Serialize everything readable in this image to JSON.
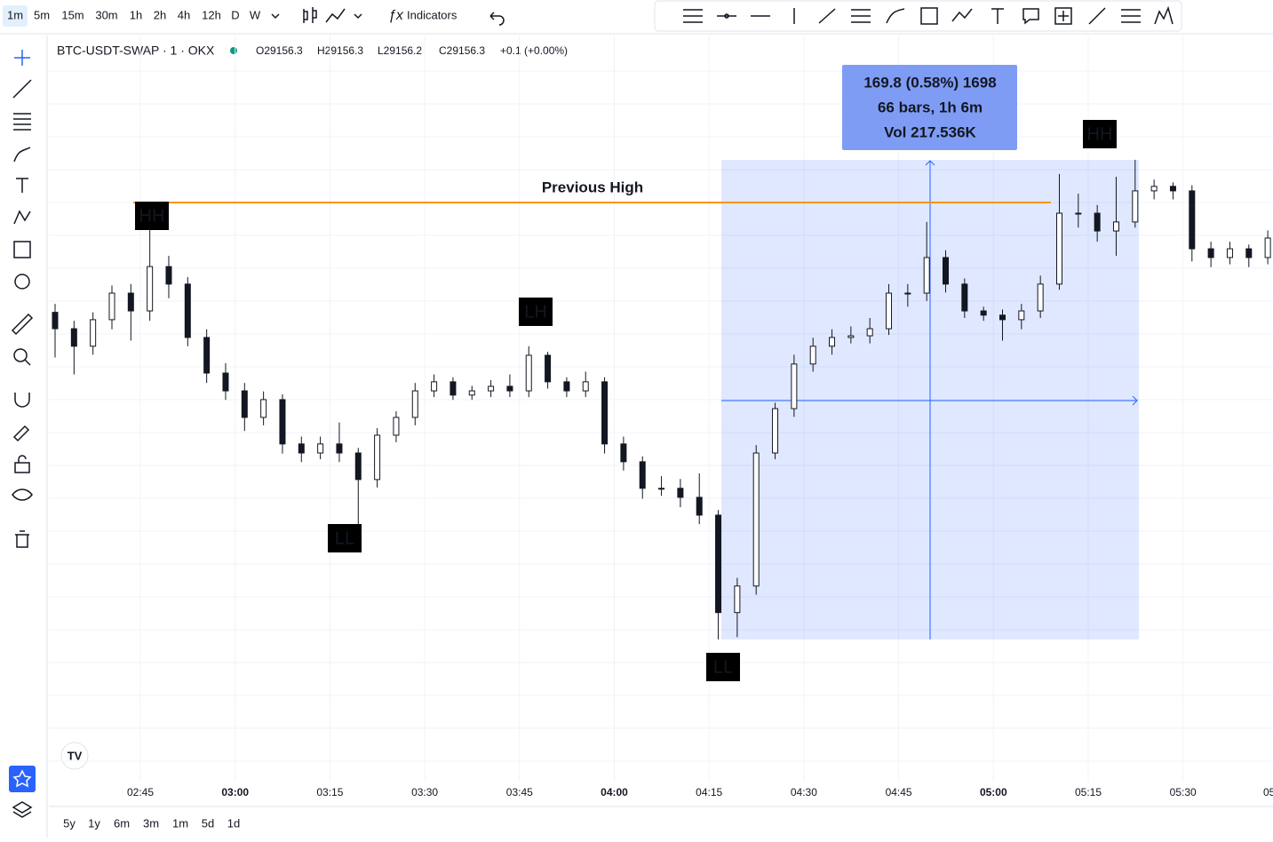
{
  "toolbar": {
    "intervals": [
      "1m",
      "5m",
      "15m",
      "30m",
      "1h",
      "2h",
      "4h",
      "12h",
      "D",
      "W"
    ],
    "indicators": "Indicators"
  },
  "legend": {
    "symbol": "BTC-USDT-SWAP · 1 · OKX",
    "open": "O29156.3",
    "high": "H29156.3",
    "low": "L29156.2",
    "close": "C29156.3",
    "change": "+0.1 (+0.00%)"
  },
  "chart": {
    "type": "candlestick",
    "ylim": [
      28967,
      29228
    ],
    "candles": [
      [
        29130.0,
        29133.0,
        29114.0,
        29124.2
      ],
      [
        29124.2,
        29127.0,
        29108.0,
        29118.0
      ],
      [
        29118.0,
        29130.0,
        29115.0,
        29127.4
      ],
      [
        29127.4,
        29139.5,
        29124.0,
        29136.8
      ],
      [
        29136.8,
        29140.0,
        29120.0,
        29130.5
      ],
      [
        29130.5,
        29159.4,
        29127.0,
        29146.2
      ],
      [
        29146.2,
        29150.0,
        29135.0,
        29140.0
      ],
      [
        29140.0,
        29142.5,
        29118.0,
        29121.1
      ],
      [
        29121.1,
        29124.0,
        29105.0,
        29108.5
      ],
      [
        29108.5,
        29112.0,
        29099.0,
        29102.2
      ],
      [
        29102.2,
        29105.0,
        29088.0,
        29092.8
      ],
      [
        29092.8,
        29102.0,
        29090.0,
        29099.1
      ],
      [
        29099.1,
        29101.0,
        29080.0,
        29083.4
      ],
      [
        29083.4,
        29086.0,
        29077.0,
        29080.2
      ],
      [
        29080.2,
        29086.0,
        29078.0,
        29083.4
      ],
      [
        29083.4,
        29091.0,
        29077.0,
        29080.2
      ],
      [
        29080.2,
        29082.0,
        29052.0,
        29070.8
      ],
      [
        29070.8,
        29089.0,
        29068.0,
        29086.5
      ],
      [
        29086.5,
        29095.0,
        29084.0,
        29092.8
      ],
      [
        29092.8,
        29105.0,
        29090.0,
        29102.2
      ],
      [
        29102.2,
        29108.0,
        29100.0,
        29105.4
      ],
      [
        29105.4,
        29107.0,
        29099.0,
        29100.7
      ],
      [
        29100.7,
        29104.0,
        29099.0,
        29102.2
      ],
      [
        29102.2,
        29106.0,
        29100.0,
        29103.8
      ],
      [
        29103.8,
        29108.0,
        29100.0,
        29102.2
      ],
      [
        29102.2,
        29118.0,
        29100.0,
        29114.8
      ],
      [
        29114.8,
        29116.0,
        29103.0,
        29105.4
      ],
      [
        29105.4,
        29107.0,
        29100.0,
        29102.2
      ],
      [
        29102.2,
        29109.0,
        29100.0,
        29105.4
      ],
      [
        29105.4,
        29107.0,
        29080.0,
        29083.4
      ],
      [
        29083.4,
        29086.0,
        29074.0,
        29077.1
      ],
      [
        29077.1,
        29079.0,
        29064.0,
        29067.7
      ],
      [
        29067.7,
        29072.0,
        29065.0,
        29067.7
      ],
      [
        29067.7,
        29071.0,
        29061.0,
        29064.5
      ],
      [
        29064.5,
        29073.0,
        29055.0,
        29058.2
      ],
      [
        29058.2,
        29060.0,
        29014.2,
        29023.7
      ],
      [
        29023.7,
        29036.0,
        29015.0,
        29033.1
      ],
      [
        29033.1,
        29083.0,
        29030.0,
        29080.2
      ],
      [
        29080.2,
        29098.0,
        29078.0,
        29095.9
      ],
      [
        29095.9,
        29115.0,
        29093.0,
        29111.7
      ],
      [
        29111.7,
        29121.0,
        29109.0,
        29118.0
      ],
      [
        29118.0,
        29124.0,
        29115.0,
        29121.1
      ],
      [
        29121.1,
        29125.0,
        29119.0,
        29121.7
      ],
      [
        29121.7,
        29128.0,
        29119.0,
        29124.2
      ],
      [
        29124.2,
        29140.0,
        29122.0,
        29136.8
      ],
      [
        29136.8,
        29140.0,
        29132.0,
        29136.8
      ],
      [
        29136.8,
        29162.0,
        29134.0,
        29149.4
      ],
      [
        29149.4,
        29152.0,
        29137.0,
        29140.0
      ],
      [
        29140.0,
        29142.0,
        29128.0,
        29130.5
      ],
      [
        29130.5,
        29132.0,
        29127.0,
        29129.0
      ],
      [
        29129.0,
        29131.0,
        29120.0,
        29127.4
      ],
      [
        29127.4,
        29133.0,
        29124.0,
        29130.5
      ],
      [
        29130.5,
        29143.0,
        29128.0,
        29140.0
      ],
      [
        29140.0,
        29179.0,
        29138.0,
        29165.1
      ],
      [
        29165.1,
        29172.0,
        29160.0,
        29165.1
      ],
      [
        29165.1,
        29168.0,
        29155.0,
        29158.8
      ],
      [
        29158.8,
        29178.0,
        29150.0,
        29162.0
      ],
      [
        29162.0,
        29184.0,
        29160.0,
        29173.0
      ],
      [
        29173.0,
        29177.0,
        29170.0,
        29174.6
      ],
      [
        29174.6,
        29176.0,
        29170.0,
        29173.0
      ],
      [
        29173.0,
        29175.0,
        29148.0,
        29152.5
      ],
      [
        29152.5,
        29155.0,
        29146.0,
        29149.4
      ],
      [
        29149.4,
        29155.0,
        29147.0,
        29152.5
      ],
      [
        29152.5,
        29154.0,
        29146.0,
        29149.4
      ],
      [
        29149.4,
        29159.0,
        29147.0,
        29156.3
      ]
    ],
    "xticks": [
      "02:45",
      "03:00",
      "03:15",
      "03:30",
      "03:45",
      "04:00",
      "04:15",
      "04:30",
      "04:45",
      "05:00",
      "05:15",
      "05:30",
      "05"
    ],
    "annotations": [
      "HH",
      "LH",
      "LL",
      "LL",
      "HH"
    ],
    "previous_high": {
      "label": "Previous High",
      "value": 29168.9
    },
    "measure": [
      "169.8 (0.58%) 1698",
      "66 bars, 1h 6m",
      "Vol 217.536K"
    ]
  },
  "ranges": [
    "5y",
    "1y",
    "6m",
    "3m",
    "1m",
    "5d",
    "1d"
  ]
}
